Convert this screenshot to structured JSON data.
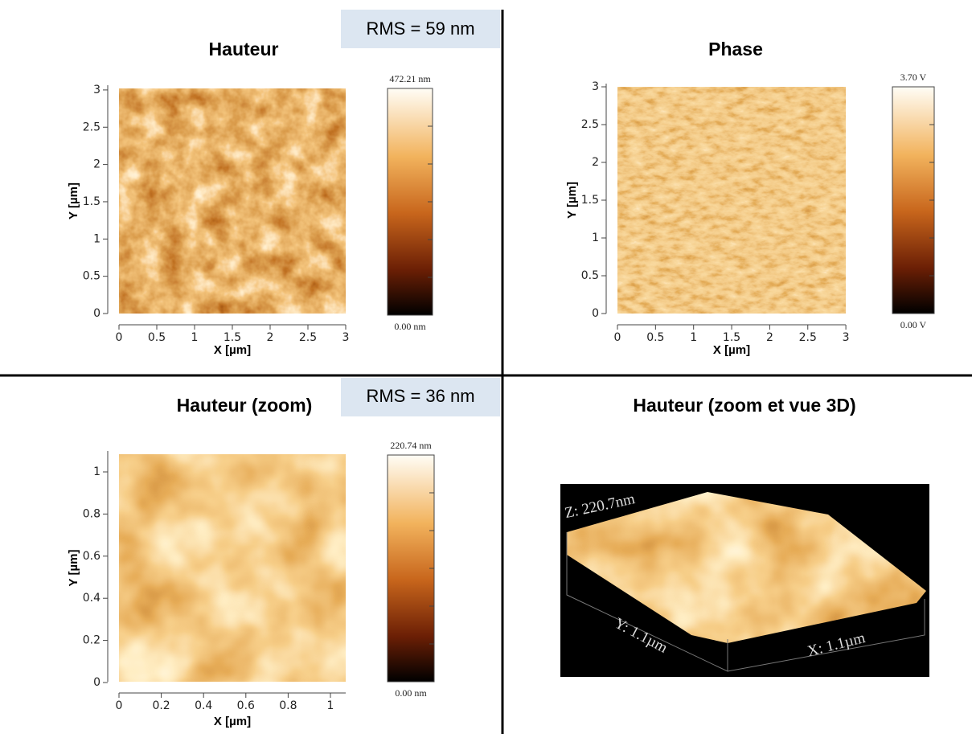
{
  "panels": [
    {
      "title": "Hauteur",
      "rms": "RMS = 59 nm",
      "x_label": "X [µm]",
      "y_label": "Y [µm]",
      "xticks": [
        0,
        0.5,
        1,
        1.5,
        2,
        2.5,
        3
      ],
      "yticks": [
        0,
        0.5,
        1,
        1.5,
        2,
        2.5,
        3
      ],
      "colorbar": {
        "max": "472.21 nm",
        "min": "0.00 nm"
      }
    },
    {
      "title": "Phase",
      "x_label": "X [µm]",
      "y_label": "Y [µm]",
      "xticks": [
        0,
        0.5,
        1,
        1.5,
        2,
        2.5,
        3
      ],
      "yticks": [
        0,
        0.5,
        1,
        1.5,
        2,
        2.5,
        3
      ],
      "colorbar": {
        "max": "3.70 V",
        "min": "0.00 V"
      }
    },
    {
      "title": "Hauteur (zoom)",
      "rms": "RMS = 36 nm",
      "x_label": "X [µm]",
      "y_label": "Y [µm]",
      "xticks": [
        0,
        0.2,
        0.4,
        0.6,
        0.8,
        1
      ],
      "yticks": [
        0,
        0.2,
        0.4,
        0.6,
        0.8,
        1
      ],
      "colorbar": {
        "max": "220.74 nm",
        "min": "0.00 nm"
      }
    },
    {
      "title": "Hauteur (zoom et vue 3D)",
      "z_label": "Z: 220.7nm",
      "y_axis": "Y: 1.1µm",
      "x_axis": "X: 1.1µm"
    }
  ]
}
